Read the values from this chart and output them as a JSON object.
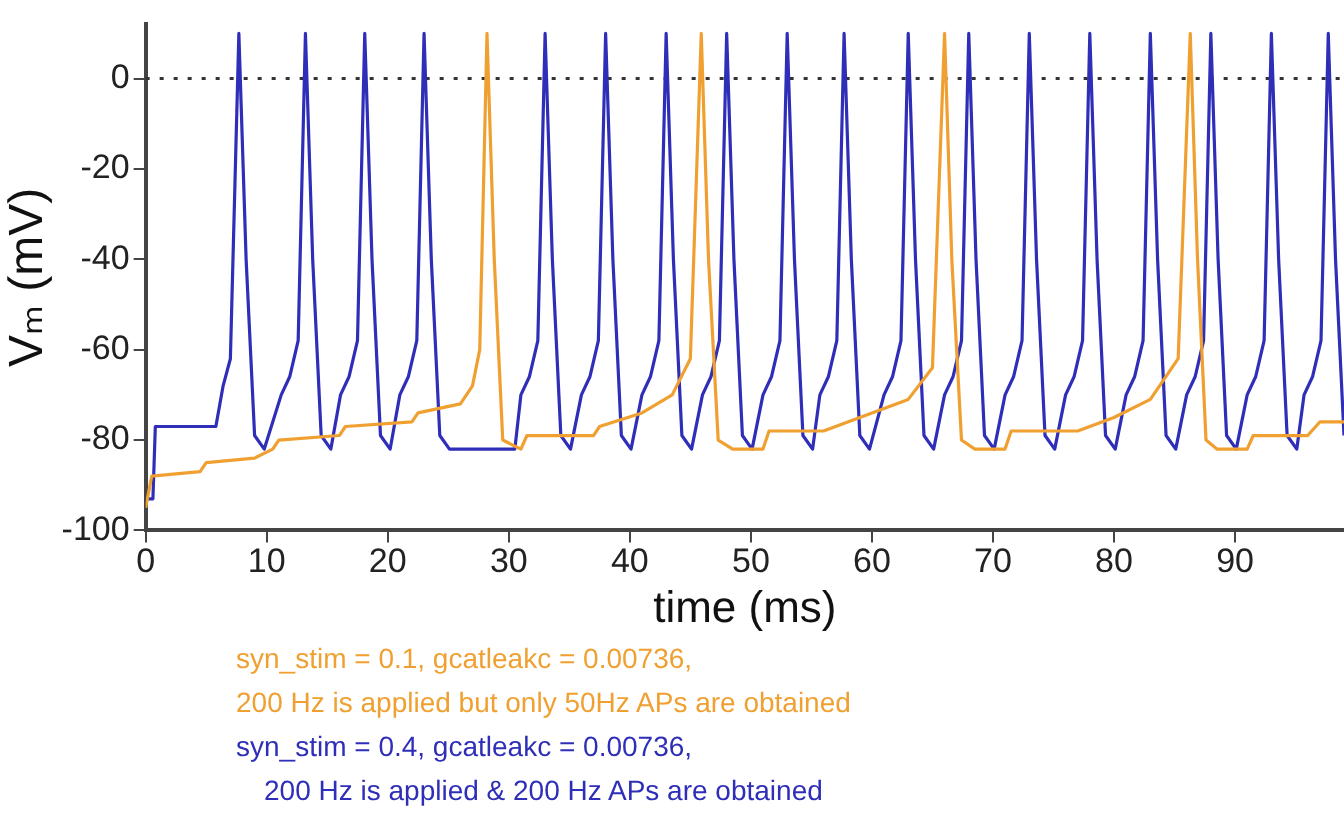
{
  "chart_data": {
    "type": "line",
    "xlabel": "time (ms)",
    "ylabel": "Vₘ (mV)",
    "xlim": [
      0,
      99
    ],
    "xticks": [
      0,
      10,
      20,
      30,
      40,
      50,
      60,
      70,
      80,
      90
    ],
    "ylim": [
      -100,
      12
    ],
    "yticks": [
      0,
      -20,
      -40,
      -60,
      -80,
      -100
    ],
    "grid": false,
    "legend": false,
    "marker": "none",
    "line_style": "solid",
    "ref_lines": [
      {
        "axis": "y",
        "value": 0,
        "line_style": "dotted",
        "color": "#333333"
      }
    ],
    "annotations": [
      "syn_stim = 0.1, gcatleakc = 0.00736,",
      "200 Hz is applied but only 50Hz APs are obtained",
      "syn_stim = 0.4, gcatleakc = 0.00736,",
      "200 Hz is applied & 200 Hz APs are obtained"
    ],
    "series": [
      {
        "color": "#f0a030",
        "x": [
          0,
          0.5,
          4.5,
          5,
          9,
          10.5,
          11,
          16,
          16.5,
          22,
          22.5,
          26,
          27,
          27.6,
          28.2,
          28.8,
          29.5,
          31,
          31.5,
          37,
          37.5,
          41,
          43.5,
          45,
          45.9,
          46.5,
          47.3,
          48.5,
          51,
          51.5,
          56,
          60,
          63,
          65,
          66,
          66.6,
          67.4,
          68.5,
          71,
          71.5,
          77,
          80,
          83,
          85.3,
          86.3,
          86.9,
          87.6,
          88.5,
          91,
          91.5,
          96,
          97,
          99
        ],
        "values": [
          -95,
          -88,
          -87,
          -85,
          -84,
          -82,
          -80,
          -79,
          -77,
          -76,
          -74,
          -72,
          -68,
          -60,
          10,
          -40,
          -80,
          -82,
          -79,
          -79,
          -77,
          -74,
          -70,
          -62,
          10,
          -40,
          -80,
          -82,
          -82,
          -78,
          -78,
          -74,
          -71,
          -64,
          10,
          -40,
          -80,
          -82,
          -82,
          -78,
          -78,
          -75,
          -71,
          -62,
          10,
          -40,
          -80,
          -82,
          -82,
          -79,
          -79,
          -76,
          -76
        ]
      },
      {
        "color": "#2e2eb8",
        "x": [
          0,
          0.6,
          0.8,
          5.8,
          6.4,
          7.0,
          7.7,
          8.3,
          9.0,
          9.8,
          11.2,
          11.9,
          12.6,
          13.2,
          13.8,
          14.5,
          15.3,
          16.1,
          16.8,
          17.5,
          18.1,
          18.7,
          19.4,
          20.2,
          21,
          21.7,
          22.4,
          23,
          23.6,
          24.3,
          25.1,
          30.5,
          31,
          31.7,
          32.4,
          33,
          33.6,
          34.3,
          35.1,
          36,
          36.7,
          37.4,
          38,
          38.6,
          39.3,
          40.1,
          41,
          41.7,
          42.4,
          43,
          43.6,
          44.3,
          45.1,
          46,
          46.7,
          47.4,
          48,
          48.6,
          49.3,
          50.1,
          51,
          51.7,
          52.4,
          53,
          53.6,
          54.3,
          55.1,
          55.7,
          56.4,
          57.1,
          57.7,
          58.3,
          59,
          59.8,
          61,
          61.7,
          62.4,
          63,
          63.6,
          64.3,
          65.1,
          66,
          66.7,
          67.4,
          68,
          68.6,
          69.3,
          70.1,
          71,
          71.7,
          72.4,
          73,
          73.6,
          74.3,
          75.1,
          76,
          76.7,
          77.4,
          78,
          78.6,
          79.3,
          80.1,
          81,
          81.7,
          82.4,
          83,
          83.6,
          84.3,
          85.1,
          86,
          86.7,
          87.4,
          88,
          88.6,
          89.3,
          90.1,
          91,
          91.7,
          92.4,
          93,
          93.6,
          94.3,
          95.1,
          95.7,
          96.4,
          97.1,
          97.7,
          98.3,
          99
        ],
        "values": [
          -93,
          -93,
          -77,
          -77,
          -68,
          -62,
          10,
          -40,
          -79,
          -82,
          -70,
          -66,
          -58,
          10,
          -40,
          -79,
          -82,
          -70,
          -66,
          -58,
          10,
          -40,
          -79,
          -82,
          -70,
          -66,
          -58,
          10,
          -40,
          -79,
          -82,
          -82,
          -70,
          -66,
          -58,
          10,
          -40,
          -79,
          -82,
          -70,
          -66,
          -58,
          10,
          -40,
          -79,
          -82,
          -70,
          -66,
          -58,
          10,
          -40,
          -79,
          -82,
          -70,
          -66,
          -58,
          10,
          -40,
          -79,
          -82,
          -70,
          -66,
          -58,
          10,
          -40,
          -79,
          -82,
          -70,
          -66,
          -58,
          10,
          -40,
          -79,
          -82,
          -70,
          -66,
          -58,
          10,
          -40,
          -79,
          -82,
          -70,
          -66,
          -58,
          10,
          -40,
          -79,
          -82,
          -70,
          -66,
          -58,
          10,
          -40,
          -79,
          -82,
          -70,
          -66,
          -58,
          10,
          -40,
          -79,
          -82,
          -70,
          -66,
          -58,
          10,
          -40,
          -79,
          -82,
          -70,
          -66,
          -58,
          10,
          -40,
          -79,
          -82,
          -70,
          -66,
          -58,
          10,
          -40,
          -79,
          -82,
          -70,
          -66,
          -58,
          10,
          -40,
          -79
        ]
      }
    ]
  }
}
